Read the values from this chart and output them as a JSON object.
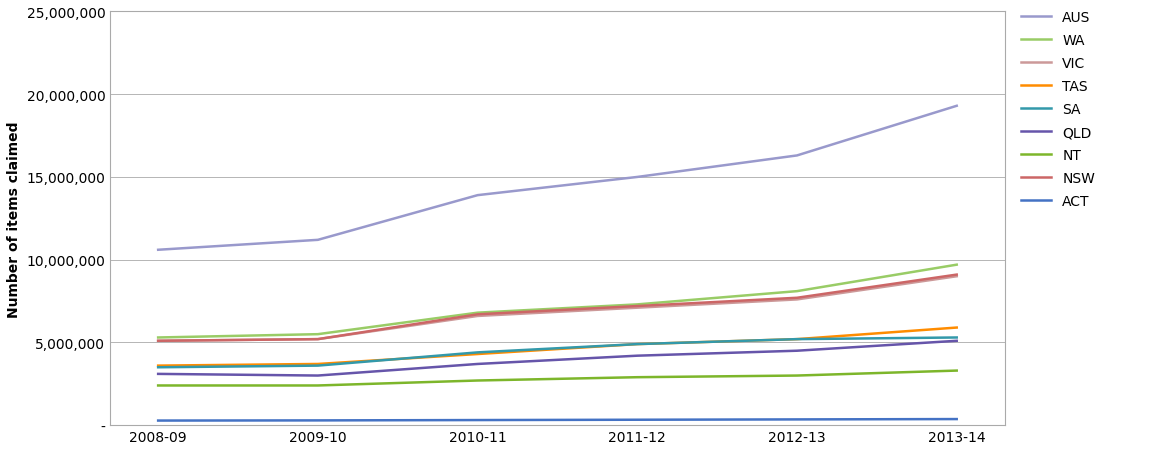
{
  "x_labels": [
    "2008-09",
    "2009-10",
    "2010-11",
    "2011-12",
    "2012-13",
    "2013-14"
  ],
  "series": {
    "AUS": {
      "values": [
        10600000,
        11200000,
        13900000,
        15000000,
        16300000,
        19300000
      ],
      "color": "#9999CC",
      "linewidth": 1.8
    },
    "WA": {
      "values": [
        5300000,
        5500000,
        6800000,
        7300000,
        8100000,
        9700000
      ],
      "color": "#99CC66",
      "linewidth": 1.8
    },
    "VIC": {
      "values": [
        5100000,
        5200000,
        6600000,
        7100000,
        7600000,
        9000000
      ],
      "color": "#CC9999",
      "linewidth": 1.8
    },
    "TAS": {
      "values": [
        3600000,
        3700000,
        4300000,
        4900000,
        5200000,
        5900000
      ],
      "color": "#FF8C00",
      "linewidth": 1.8
    },
    "SA": {
      "values": [
        3500000,
        3600000,
        4400000,
        4900000,
        5200000,
        5300000
      ],
      "color": "#3399AA",
      "linewidth": 1.8
    },
    "QLD": {
      "values": [
        3100000,
        3000000,
        3700000,
        4200000,
        4500000,
        5100000
      ],
      "color": "#6655AA",
      "linewidth": 1.8
    },
    "NT": {
      "values": [
        2400000,
        2400000,
        2700000,
        2900000,
        3000000,
        3300000
      ],
      "color": "#7DB62B",
      "linewidth": 1.8
    },
    "NSW": {
      "values": [
        5100000,
        5200000,
        6700000,
        7200000,
        7700000,
        9100000
      ],
      "color": "#CC6666",
      "linewidth": 1.8
    },
    "ACT": {
      "values": [
        280000,
        290000,
        310000,
        330000,
        350000,
        370000
      ],
      "color": "#4472C4",
      "linewidth": 1.8
    }
  },
  "ylabel": "Number of items claimed",
  "ylim": [
    0,
    25000000
  ],
  "yticks": [
    0,
    5000000,
    10000000,
    15000000,
    20000000,
    25000000
  ],
  "ytick_labels": [
    "-",
    "5,000,000",
    "10,000,000",
    "15,000,000",
    "20,000,000",
    "25,000,000"
  ],
  "background_color": "#ffffff",
  "grid_color": "#AAAAAA",
  "legend_order": [
    "AUS",
    "WA",
    "VIC",
    "TAS",
    "SA",
    "QLD",
    "NT",
    "NSW",
    "ACT"
  ],
  "spine_color": "#AAAAAA",
  "tick_fontsize": 10,
  "ylabel_fontsize": 10,
  "legend_fontsize": 10
}
